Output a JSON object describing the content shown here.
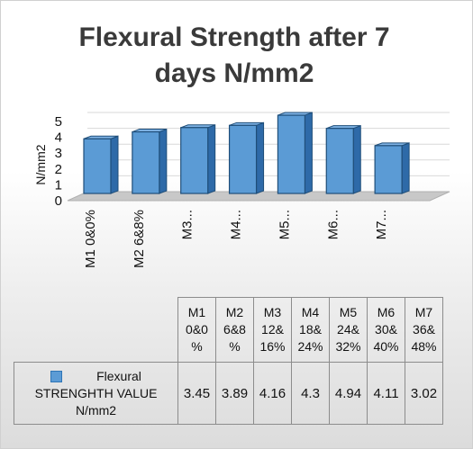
{
  "chart_data": {
    "type": "bar",
    "title": "Flexural Strength after  7 days N/mm2",
    "ylabel": "N/mm2",
    "ylim": [
      0,
      5
    ],
    "yticks": [
      "0",
      "1",
      "2",
      "3",
      "4",
      "5"
    ],
    "categories": [
      "M1 0&0%",
      "M2 6&8%",
      "M3...",
      "M4...",
      "M5...",
      "M6...",
      "M7..."
    ],
    "table_headers": [
      "M1 0&0 %",
      "M2 6&8 %",
      "M3 12& 16%",
      "M4 18& 24%",
      "M5 24& 32%",
      "M6 30& 40%",
      "M7 36& 48%"
    ],
    "series": [
      {
        "name": "Flexural STRENGHTH VALUE N/mm2",
        "values": [
          3.45,
          3.89,
          4.16,
          4.3,
          4.94,
          4.11,
          3.02
        ],
        "value_labels": [
          "3.45",
          "3.89",
          "4.16",
          "4.3",
          "4.94",
          "4.11",
          "3.02"
        ],
        "color": "#5b9bd5"
      }
    ],
    "grid": true,
    "legend": "data-table"
  }
}
